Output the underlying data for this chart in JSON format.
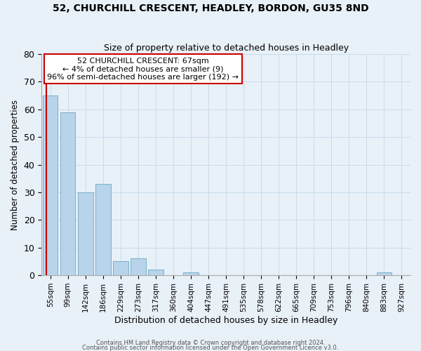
{
  "title": "52, CHURCHILL CRESCENT, HEADLEY, BORDON, GU35 8ND",
  "subtitle": "Size of property relative to detached houses in Headley",
  "xlabel": "Distribution of detached houses by size in Headley",
  "ylabel": "Number of detached properties",
  "bar_labels": [
    "55sqm",
    "99sqm",
    "142sqm",
    "186sqm",
    "229sqm",
    "273sqm",
    "317sqm",
    "360sqm",
    "404sqm",
    "447sqm",
    "491sqm",
    "535sqm",
    "578sqm",
    "622sqm",
    "665sqm",
    "709sqm",
    "753sqm",
    "796sqm",
    "840sqm",
    "883sqm",
    "927sqm"
  ],
  "bar_values": [
    65,
    59,
    30,
    33,
    5,
    6,
    2,
    0,
    1,
    0,
    0,
    0,
    0,
    0,
    0,
    0,
    0,
    0,
    0,
    1,
    0
  ],
  "bar_color": "#b8d4ea",
  "bar_edge_color": "#7aafc8",
  "ylim": [
    0,
    80
  ],
  "yticks": [
    0,
    10,
    20,
    30,
    40,
    50,
    60,
    70,
    80
  ],
  "annotation_line1": "52 CHURCHILL CRESCENT: 67sqm",
  "annotation_line2": "← 4% of detached houses are smaller (9)",
  "annotation_line3": "96% of semi-detached houses are larger (192) →",
  "annotation_box_edge_color": "#cc0000",
  "vline_color": "#cc0000",
  "grid_color": "#c8dcea",
  "bg_color": "#e8f0f8",
  "footnote1": "Contains HM Land Registry data © Crown copyright and database right 2024.",
  "footnote2": "Contains public sector information licensed under the Open Government Licence v3.0."
}
